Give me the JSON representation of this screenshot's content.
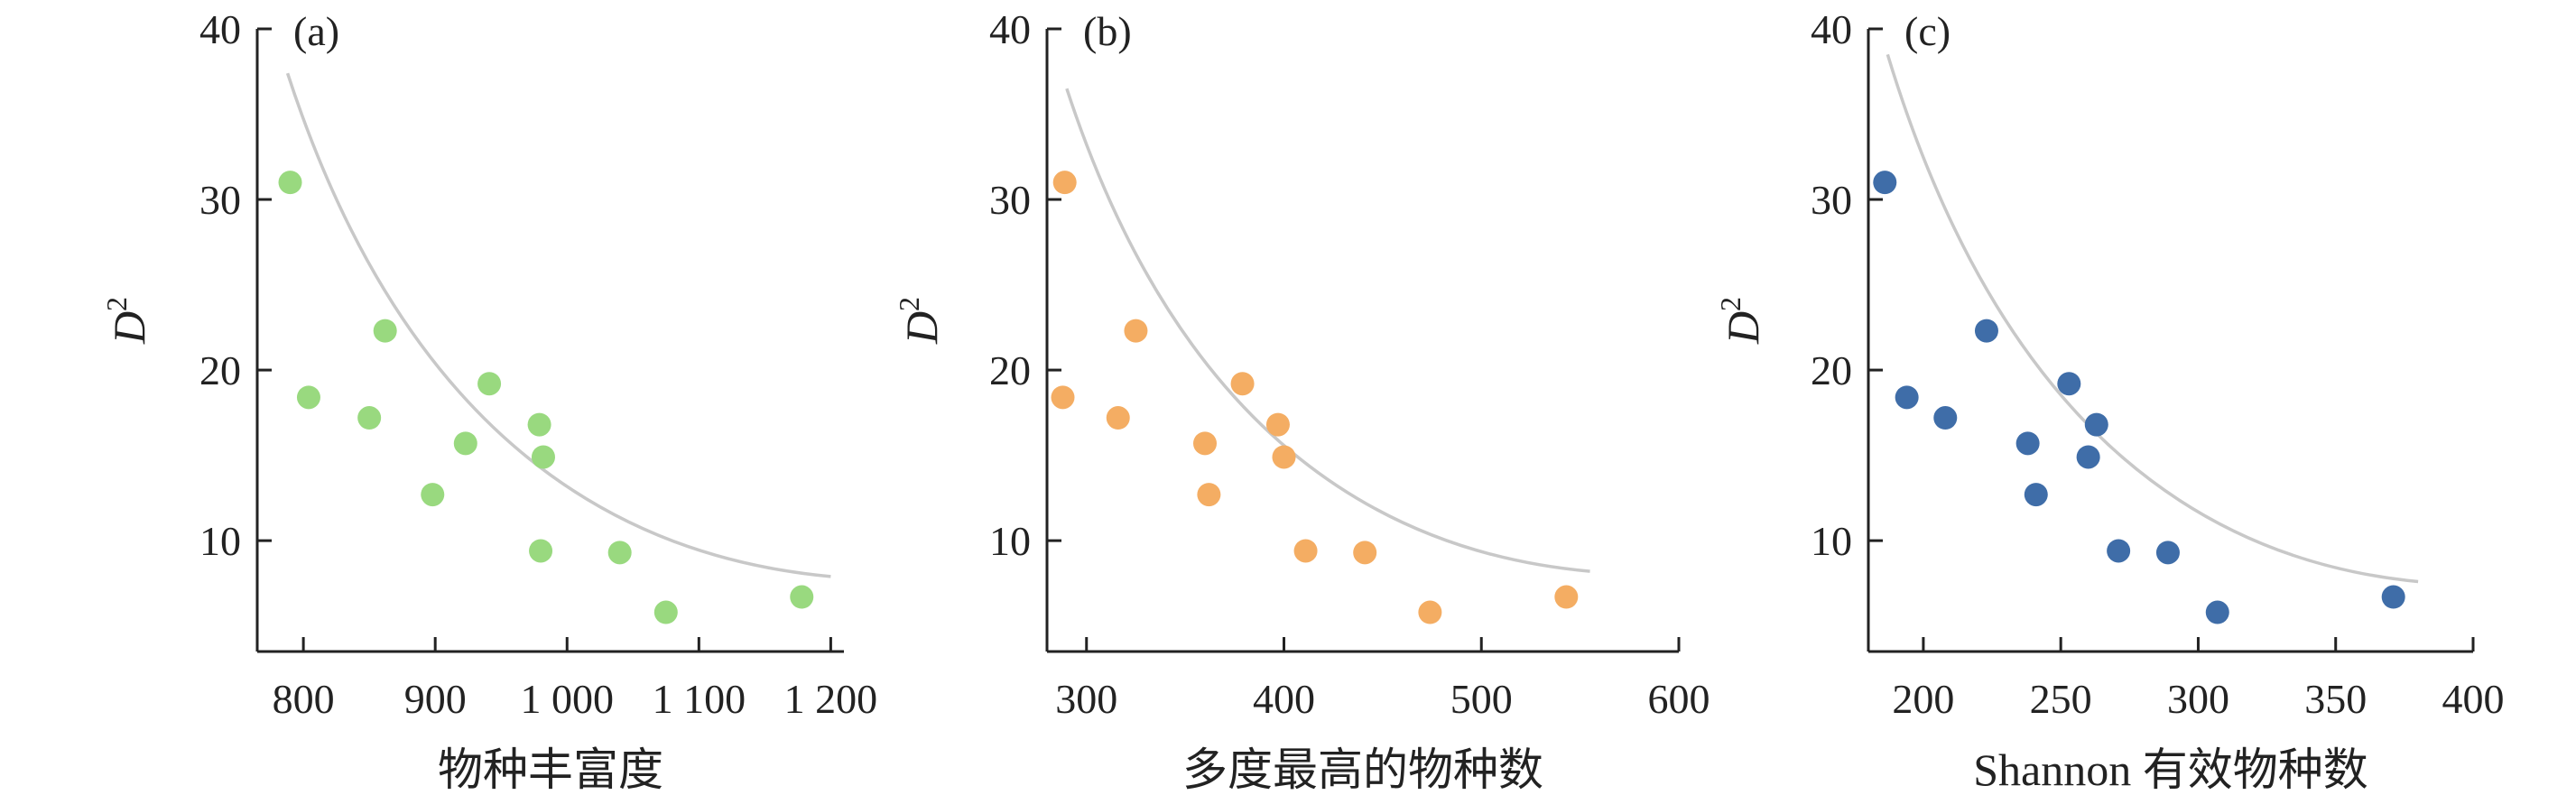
{
  "chart_data": [
    {
      "type": "scatter",
      "panel_label": "(a)",
      "xlabel": "物种丰富度",
      "ylabel": "D",
      "ylabel_superscript": "2",
      "xlim": [
        765,
        1210
      ],
      "ylim": [
        3.5,
        40
      ],
      "xticks": [
        800,
        900,
        1000,
        1100,
        1200
      ],
      "xtick_labels": [
        "800",
        "900",
        "1 000",
        "1 100",
        "1 200"
      ],
      "yticks": [
        10,
        20,
        30,
        40
      ],
      "ytick_labels": [
        "10",
        "20",
        "30",
        "40"
      ],
      "grid": false,
      "point_color": "#99d97f",
      "curve_color": "#c8c8c8",
      "points": [
        {
          "x": 790,
          "y": 31.0
        },
        {
          "x": 804,
          "y": 18.4
        },
        {
          "x": 850,
          "y": 17.2
        },
        {
          "x": 862,
          "y": 22.3
        },
        {
          "x": 898,
          "y": 12.7
        },
        {
          "x": 923,
          "y": 15.7
        },
        {
          "x": 941,
          "y": 19.2
        },
        {
          "x": 979,
          "y": 16.8
        },
        {
          "x": 980,
          "y": 9.4
        },
        {
          "x": 982,
          "y": 14.9
        },
        {
          "x": 1040,
          "y": 9.3
        },
        {
          "x": 1075,
          "y": 5.8
        },
        {
          "x": 1178,
          "y": 6.7
        }
      ],
      "fit_curve": [
        [
          788,
          37.4
        ],
        [
          1200,
          7.9
        ]
      ]
    },
    {
      "type": "scatter",
      "panel_label": "(b)",
      "xlabel": "多度最高的物种数",
      "ylabel": "D",
      "ylabel_superscript": "2",
      "xlim": [
        280,
        600
      ],
      "ylim": [
        3.5,
        40
      ],
      "xticks": [
        300,
        400,
        500,
        600
      ],
      "xtick_labels": [
        "300",
        "400",
        "500",
        "600"
      ],
      "yticks": [
        10,
        20,
        30,
        40
      ],
      "ytick_labels": [
        "10",
        "20",
        "30",
        "40"
      ],
      "grid": false,
      "point_color": "#f4ad63",
      "curve_color": "#c8c8c8",
      "points": [
        {
          "x": 288,
          "y": 18.4
        },
        {
          "x": 289,
          "y": 31.0
        },
        {
          "x": 316,
          "y": 17.2
        },
        {
          "x": 325,
          "y": 22.3
        },
        {
          "x": 360,
          "y": 15.7
        },
        {
          "x": 362,
          "y": 12.7
        },
        {
          "x": 379,
          "y": 19.2
        },
        {
          "x": 397,
          "y": 16.8
        },
        {
          "x": 400,
          "y": 14.9
        },
        {
          "x": 411,
          "y": 9.4
        },
        {
          "x": 441,
          "y": 9.3
        },
        {
          "x": 474,
          "y": 5.8
        },
        {
          "x": 543,
          "y": 6.7
        }
      ],
      "fit_curve": [
        [
          290,
          36.5
        ],
        [
          555,
          8.2
        ]
      ]
    },
    {
      "type": "scatter",
      "panel_label": "(c)",
      "xlabel": "Shannon 有效物种数",
      "ylabel": "D",
      "ylabel_superscript": "2",
      "xlim": [
        180,
        400
      ],
      "ylim": [
        3.5,
        40
      ],
      "xticks": [
        200,
        250,
        300,
        350,
        400
      ],
      "xtick_labels": [
        "200",
        "250",
        "300",
        "350",
        "400"
      ],
      "yticks": [
        10,
        20,
        30,
        40
      ],
      "ytick_labels": [
        "10",
        "20",
        "30",
        "40"
      ],
      "grid": false,
      "point_color": "#3f6da8",
      "curve_color": "#c8c8c8",
      "points": [
        {
          "x": 186,
          "y": 31.0
        },
        {
          "x": 194,
          "y": 18.4
        },
        {
          "x": 208,
          "y": 17.2
        },
        {
          "x": 223,
          "y": 22.3
        },
        {
          "x": 238,
          "y": 15.7
        },
        {
          "x": 241,
          "y": 12.7
        },
        {
          "x": 253,
          "y": 19.2
        },
        {
          "x": 260,
          "y": 14.9
        },
        {
          "x": 263,
          "y": 16.8
        },
        {
          "x": 271,
          "y": 9.4
        },
        {
          "x": 289,
          "y": 9.3
        },
        {
          "x": 307,
          "y": 5.8
        },
        {
          "x": 371,
          "y": 6.7
        }
      ],
      "fit_curve": [
        [
          187,
          38.5
        ],
        [
          380,
          7.6
        ]
      ]
    }
  ]
}
